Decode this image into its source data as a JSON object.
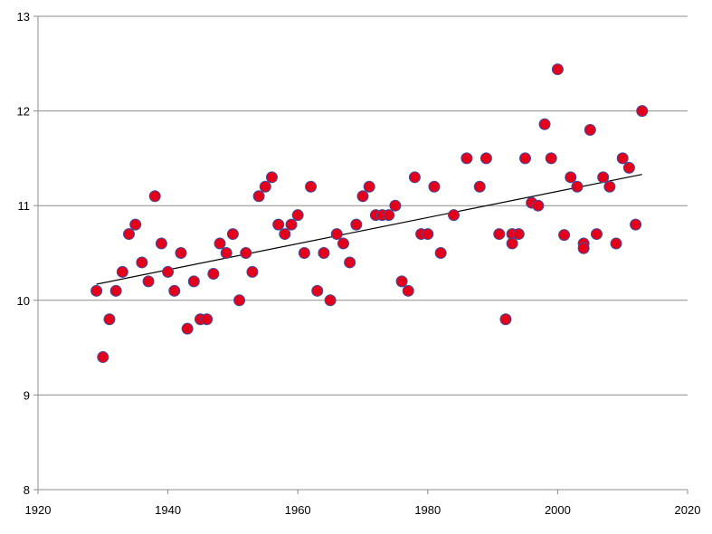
{
  "chart_data": {
    "type": "scatter",
    "title": "",
    "xlabel": "",
    "ylabel": "",
    "xlim": [
      1920,
      2020
    ],
    "ylim": [
      8,
      13
    ],
    "xticks": [
      1920,
      1940,
      1960,
      1980,
      2000,
      2020
    ],
    "yticks": [
      8,
      9,
      10,
      11,
      12,
      13
    ],
    "grid": "horizontal",
    "legend": "none",
    "colors": {
      "point_fill": "#e3001b",
      "point_edge": "#3c4fa0",
      "grid": "#8c8c8c",
      "trend": "#000000"
    },
    "series": [
      {
        "x": [
          1929,
          1930,
          1931,
          1932,
          1933,
          1934,
          1935,
          1936,
          1937,
          1938,
          1939,
          1940,
          1941,
          1942,
          1943,
          1944,
          1945,
          1946,
          1947,
          1948,
          1949,
          1950,
          1951,
          1952,
          1953,
          1954,
          1955,
          1956,
          1957,
          1958,
          1959,
          1960,
          1961,
          1962,
          1963,
          1964,
          1965,
          1966,
          1967,
          1968,
          1969,
          1970,
          1971,
          1972,
          1973,
          1974,
          1975,
          1976,
          1977,
          1978,
          1979,
          1980,
          1981,
          1982,
          1984,
          1986,
          1988,
          1989,
          1991,
          1992,
          1993,
          1993,
          1994,
          1995,
          1996,
          1997,
          1998,
          1999,
          2000,
          2001,
          2002,
          2003,
          2004,
          2004,
          2005,
          2006,
          2007,
          2008,
          2009,
          2010,
          2011,
          2012,
          2013
        ],
        "y": [
          10.1,
          9.4,
          9.8,
          10.1,
          10.3,
          10.7,
          10.8,
          10.4,
          10.2,
          11.1,
          10.6,
          10.3,
          10.1,
          10.5,
          9.7,
          10.2,
          9.8,
          9.8,
          10.28,
          10.6,
          10.5,
          10.7,
          10.0,
          10.5,
          10.3,
          11.1,
          11.2,
          11.3,
          10.8,
          10.7,
          10.8,
          10.9,
          10.5,
          11.2,
          10.1,
          10.5,
          10.0,
          10.7,
          10.6,
          10.4,
          10.8,
          11.1,
          11.2,
          10.9,
          10.9,
          10.9,
          11.0,
          10.2,
          10.1,
          11.3,
          10.7,
          10.7,
          11.2,
          10.5,
          10.9,
          11.5,
          11.2,
          11.5,
          10.7,
          9.8,
          10.7,
          10.6,
          10.7,
          11.5,
          11.03,
          11.0,
          11.86,
          11.5,
          12.44,
          10.69,
          11.3,
          11.2,
          10.6,
          10.55,
          11.8,
          10.7,
          11.3,
          11.2,
          10.6,
          11.5,
          11.4,
          10.8,
          12.0
        ]
      }
    ],
    "trendline": {
      "x": [
        1929,
        2013
      ],
      "y": [
        10.17,
        11.33
      ]
    }
  }
}
